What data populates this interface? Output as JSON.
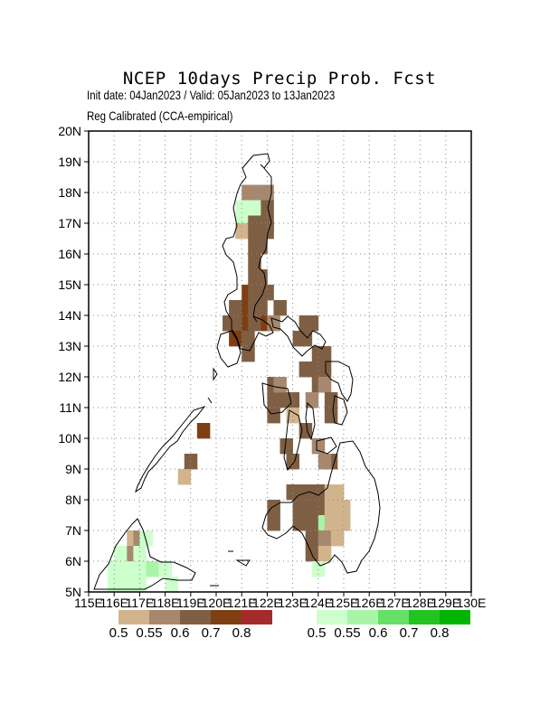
{
  "header": {
    "title": "NCEP 10days Precip Prob. Fcst",
    "subtitle_1": "Init date: 04Jan2023 / Valid: 05Jan2023 to 13Jan2023",
    "subtitle_2": "Reg Calibrated (CCA-empirical)"
  },
  "axes": {
    "lon_ticks": [
      "115E",
      "116E",
      "117E",
      "118E",
      "119E",
      "120E",
      "121E",
      "122E",
      "123E",
      "124E",
      "125E",
      "126E",
      "127E",
      "128E",
      "129E",
      "130E"
    ],
    "lat_ticks": [
      "5N",
      "6N",
      "7N",
      "8N",
      "9N",
      "10N",
      "11N",
      "12N",
      "13N",
      "14N",
      "15N",
      "16N",
      "17N",
      "18N",
      "19N",
      "20N"
    ],
    "lon_range": [
      115,
      130
    ],
    "lat_range": [
      5,
      20
    ],
    "grid": "dotted"
  },
  "legend": {
    "dry": {
      "colors": [
        "#d2b48c",
        "#a7886e",
        "#7f5f44",
        "#7f3f13",
        "#a52a2a"
      ],
      "labels": [
        "0.5",
        "0.55",
        "0.6",
        "0.7",
        "0.8"
      ]
    },
    "wet": {
      "colors": [
        "#ccffcc",
        "#a8f5a8",
        "#66e066",
        "#22c422",
        "#00b400"
      ],
      "labels": [
        "0.5",
        "0.55",
        "0.6",
        "0.7",
        "0.8"
      ]
    }
  },
  "chart_data": {
    "type": "heatmap",
    "cell_deg": 0.5,
    "note_units": "lon/lat of cell lower-left corner in degrees; category index into legend",
    "cells": [
      [
        121.25,
        17.75,
        "d",
        1
      ],
      [
        121.5,
        17.75,
        "d",
        1
      ],
      [
        121.75,
        17.75,
        "d",
        1
      ],
      [
        121.0,
        17.75,
        "d",
        1
      ],
      [
        120.75,
        17.25,
        "w",
        0
      ],
      [
        121.0,
        17.25,
        "w",
        0
      ],
      [
        121.25,
        17.25,
        "w",
        0
      ],
      [
        121.5,
        17.25,
        "w",
        0
      ],
      [
        121.75,
        17.25,
        "d",
        2
      ],
      [
        121.0,
        16.75,
        "d",
        0
      ],
      [
        120.75,
        16.75,
        "w",
        0
      ],
      [
        121.25,
        16.75,
        "d",
        2
      ],
      [
        121.5,
        16.75,
        "d",
        2
      ],
      [
        121.75,
        16.75,
        "d",
        2
      ],
      [
        120.75,
        16.5,
        "d",
        0
      ],
      [
        121.25,
        16.5,
        "d",
        2
      ],
      [
        121.5,
        16.5,
        "d",
        2
      ],
      [
        121.75,
        16.5,
        "d",
        2
      ],
      [
        121.25,
        16.0,
        "d",
        2
      ],
      [
        121.5,
        16.0,
        "d",
        2
      ],
      [
        121.25,
        15.5,
        "d",
        2
      ],
      [
        121.25,
        15.0,
        "d",
        2
      ],
      [
        121.5,
        15.0,
        "d",
        2
      ],
      [
        121.0,
        14.5,
        "d",
        3
      ],
      [
        121.25,
        14.5,
        "d",
        2
      ],
      [
        121.75,
        14.5,
        "d",
        2
      ],
      [
        120.5,
        14.0,
        "d",
        2
      ],
      [
        121.0,
        14.0,
        "d",
        3
      ],
      [
        121.25,
        14.0,
        "d",
        2
      ],
      [
        121.5,
        14.0,
        "d",
        2
      ],
      [
        122.25,
        14.0,
        "d",
        2
      ],
      [
        120.25,
        13.5,
        "d",
        2
      ],
      [
        120.75,
        13.5,
        "d",
        2
      ],
      [
        121.0,
        13.5,
        "d",
        3
      ],
      [
        121.25,
        13.5,
        "d",
        2
      ],
      [
        121.75,
        13.5,
        "d",
        3
      ],
      [
        122.0,
        13.5,
        "d",
        1
      ],
      [
        120.5,
        13.0,
        "d",
        3
      ],
      [
        121.0,
        13.0,
        "d",
        2
      ],
      [
        121.0,
        12.5,
        "d",
        2
      ],
      [
        123.25,
        13.5,
        "d",
        2
      ],
      [
        123.5,
        13.5,
        "d",
        2
      ],
      [
        123.0,
        13.0,
        "d",
        2
      ],
      [
        123.25,
        13.0,
        "d",
        2
      ],
      [
        123.75,
        12.5,
        "d",
        2
      ],
      [
        124.0,
        12.5,
        "d",
        2
      ],
      [
        123.25,
        12.0,
        "d",
        2
      ],
      [
        123.75,
        12.0,
        "d",
        2
      ],
      [
        124.0,
        12.0,
        "d",
        2
      ],
      [
        122.0,
        11.5,
        "d",
        2
      ],
      [
        122.0,
        11.0,
        "d",
        2
      ],
      [
        122.25,
        11.0,
        "d",
        2
      ],
      [
        122.0,
        10.5,
        "d",
        2
      ],
      [
        122.25,
        11.5,
        "d",
        1
      ],
      [
        122.75,
        11.0,
        "d",
        2
      ],
      [
        123.75,
        11.5,
        "d",
        2
      ],
      [
        124.0,
        11.5,
        "d",
        1
      ],
      [
        123.5,
        11.0,
        "d",
        1
      ],
      [
        124.25,
        11.0,
        "d",
        2
      ],
      [
        122.75,
        10.5,
        "d",
        0
      ],
      [
        123.25,
        10.0,
        "d",
        2
      ],
      [
        124.25,
        10.5,
        "d",
        2
      ],
      [
        122.5,
        9.5,
        "d",
        2
      ],
      [
        123.75,
        9.5,
        "d",
        1
      ],
      [
        122.75,
        9.0,
        "d",
        2
      ],
      [
        124.25,
        9.0,
        "d",
        2
      ],
      [
        124.0,
        9.0,
        "d",
        1
      ],
      [
        119.25,
        10.0,
        "d",
        3
      ],
      [
        118.75,
        9.0,
        "d",
        2
      ],
      [
        118.5,
        8.5,
        "d",
        0
      ],
      [
        122.75,
        8.0,
        "d",
        2
      ],
      [
        123.0,
        8.0,
        "d",
        2
      ],
      [
        123.25,
        8.0,
        "d",
        2
      ],
      [
        123.5,
        8.0,
        "d",
        2
      ],
      [
        123.75,
        8.0,
        "d",
        2
      ],
      [
        124.0,
        8.0,
        "d",
        2
      ],
      [
        124.25,
        8.0,
        "d",
        0
      ],
      [
        124.5,
        8.0,
        "d",
        0
      ],
      [
        122.0,
        7.5,
        "d",
        2
      ],
      [
        123.0,
        7.5,
        "d",
        2
      ],
      [
        123.25,
        7.5,
        "d",
        2
      ],
      [
        123.5,
        7.5,
        "d",
        2
      ],
      [
        123.75,
        7.5,
        "d",
        2
      ],
      [
        124.0,
        7.5,
        "d",
        2
      ],
      [
        124.25,
        7.5,
        "d",
        0
      ],
      [
        124.5,
        7.5,
        "d",
        0
      ],
      [
        124.75,
        7.5,
        "d",
        0
      ],
      [
        122.0,
        7.0,
        "d",
        2
      ],
      [
        123.0,
        7.0,
        "d",
        2
      ],
      [
        123.5,
        7.0,
        "d",
        2
      ],
      [
        123.75,
        7.0,
        "d",
        2
      ],
      [
        124.0,
        7.0,
        "w",
        1
      ],
      [
        124.25,
        7.0,
        "d",
        0
      ],
      [
        124.5,
        7.0,
        "d",
        0
      ],
      [
        124.75,
        7.0,
        "d",
        0
      ],
      [
        123.5,
        6.5,
        "d",
        2
      ],
      [
        123.75,
        6.5,
        "d",
        2
      ],
      [
        124.0,
        6.5,
        "d",
        1
      ],
      [
        124.5,
        6.5,
        "d",
        0
      ],
      [
        123.5,
        6.0,
        "d",
        2
      ],
      [
        123.75,
        6.0,
        "d",
        2
      ],
      [
        124.0,
        6.0,
        "d",
        0
      ],
      [
        123.75,
        5.5,
        "w",
        0
      ],
      [
        116.5,
        6.5,
        "d",
        0
      ],
      [
        116.75,
        6.5,
        "d",
        1
      ],
      [
        116.0,
        6.0,
        "w",
        0
      ],
      [
        116.5,
        6.0,
        "d",
        1
      ],
      [
        116.75,
        6.0,
        "w",
        0
      ],
      [
        117.0,
        6.5,
        "w",
        0
      ],
      [
        115.75,
        5.5,
        "w",
        0
      ],
      [
        116.25,
        5.5,
        "w",
        0
      ],
      [
        116.75,
        5.5,
        "w",
        0
      ],
      [
        117.25,
        5.5,
        "w",
        1
      ],
      [
        117.75,
        5.5,
        "w",
        0
      ],
      [
        115.75,
        5.0,
        "w",
        0
      ],
      [
        116.25,
        5.0,
        "w",
        0
      ],
      [
        116.75,
        5.0,
        "w",
        0
      ],
      [
        118.0,
        5.0,
        "w",
        0
      ]
    ]
  }
}
